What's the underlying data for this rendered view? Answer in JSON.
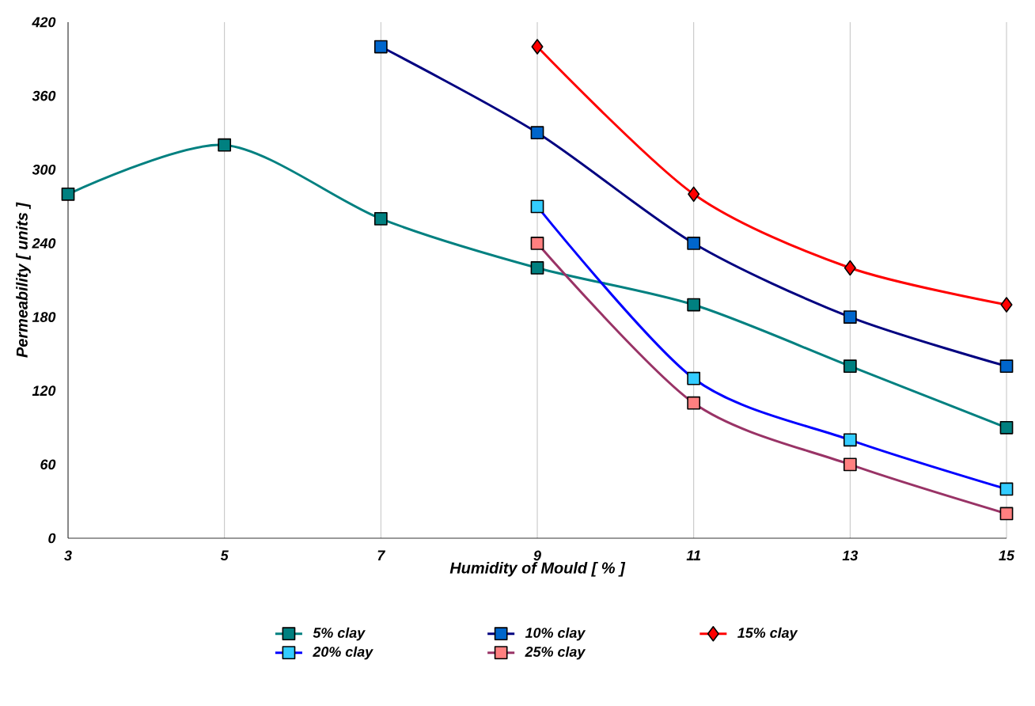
{
  "chart_data": {
    "type": "line",
    "xlabel": "Humidity of Mould [ % ]",
    "ylabel": "Permeability [ units ]",
    "x": [
      3,
      5,
      7,
      9,
      11,
      13,
      15
    ],
    "xlim": [
      3,
      15
    ],
    "xticks": [
      3,
      5,
      7,
      9,
      11,
      13,
      15
    ],
    "ylim": [
      0,
      420
    ],
    "yticks": [
      0,
      60,
      120,
      180,
      240,
      300,
      360,
      420
    ],
    "grid": "x",
    "legend": "bottom",
    "line_style": "solid",
    "series": [
      {
        "name": "5% clay",
        "color": "#008080",
        "marker": "square",
        "colors": [
          "#008080",
          "#008080",
          "#008080",
          "#008080",
          "#008080",
          "#008080",
          "#008080"
        ],
        "values": [
          280,
          320,
          260,
          220,
          190,
          140,
          90
        ]
      },
      {
        "name": "10% clay",
        "color": "#000080",
        "marker": "square",
        "colors": [
          null,
          null,
          "#0066cc",
          "#0066cc",
          "#0066cc",
          "#0066cc",
          "#0066cc"
        ],
        "values": [
          null,
          null,
          400,
          330,
          240,
          180,
          140
        ]
      },
      {
        "name": "15% clay",
        "color": "#ff0000",
        "marker": "diamond",
        "colors": [
          null,
          null,
          null,
          "#ff0000",
          "#ff0000",
          "#ff0000",
          "#ff0000"
        ],
        "values": [
          null,
          null,
          null,
          400,
          280,
          220,
          190
        ]
      },
      {
        "name": "20% clay",
        "color": "#0000ff",
        "marker": "square",
        "colors": [
          null,
          null,
          null,
          "#33ccff",
          "#33ccff",
          "#33ccff",
          "#33ccff"
        ],
        "values": [
          null,
          null,
          null,
          270,
          130,
          80,
          40
        ]
      },
      {
        "name": "25% clay",
        "color": "#993366",
        "marker": "square",
        "colors": [
          null,
          null,
          null,
          "#ff8080",
          "#ff8080",
          "#ff8080",
          "#ff8080"
        ],
        "values": [
          null,
          null,
          null,
          240,
          110,
          60,
          20
        ]
      }
    ]
  }
}
